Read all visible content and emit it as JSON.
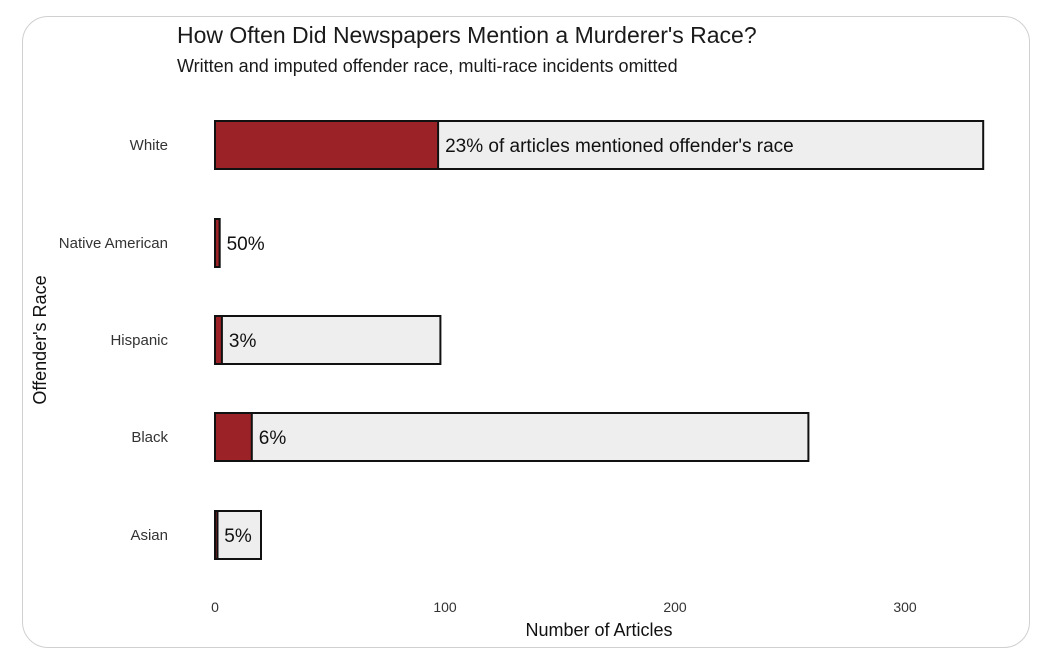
{
  "chart_data": {
    "type": "bar",
    "orientation": "horizontal",
    "stacked": true,
    "title": "How Often Did Newspapers Mention a Murderer's Race?",
    "subtitle": "Written and imputed offender race, multi-race incidents omitted",
    "xlabel": "Number of Articles",
    "ylabel": "Offender's Race",
    "xlim": [
      0,
      335
    ],
    "xticks": [
      0,
      100,
      200,
      300
    ],
    "grid": false,
    "categories": [
      "White",
      "Native American",
      "Hispanic",
      "Black",
      "Asian"
    ],
    "totals": [
      334,
      2,
      98,
      258,
      20
    ],
    "mentioned": [
      97,
      2,
      3,
      16,
      1
    ],
    "labels": [
      "23% of articles mentioned offender's race",
      "50%",
      "3%",
      "6%",
      "5%"
    ],
    "colors": {
      "mentioned": "#9b2226",
      "total": "#eeeeee",
      "outline": "#111111"
    }
  }
}
